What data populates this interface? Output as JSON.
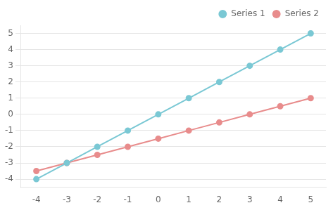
{
  "chart_data": {
    "type": "line",
    "x": [
      -4,
      -3,
      -2,
      -1,
      0,
      1,
      2,
      3,
      4,
      5
    ],
    "series": [
      {
        "name": "Series 1",
        "color": "#7AC8D4",
        "values": [
          -4,
          -3,
          -2,
          -1,
          0,
          1,
          2,
          3,
          4,
          5
        ]
      },
      {
        "name": "Series 2",
        "color": "#E88C8C",
        "values": [
          -3.5,
          -3.0,
          -2.5,
          -2.0,
          -1.5,
          -1.0,
          -0.5,
          0.0,
          0.5,
          1.0
        ]
      }
    ],
    "xlim": [
      -4.5,
      5.5
    ],
    "ylim": [
      -4.5,
      5.5
    ],
    "xticks": [
      -4,
      -3,
      -2,
      -1,
      0,
      1,
      2,
      3,
      4,
      5
    ],
    "yticks": [
      -4,
      -3,
      -2,
      -1,
      0,
      1,
      2,
      3,
      4,
      5
    ],
    "grid": "y",
    "legend": "upper right",
    "marker": "circle"
  }
}
